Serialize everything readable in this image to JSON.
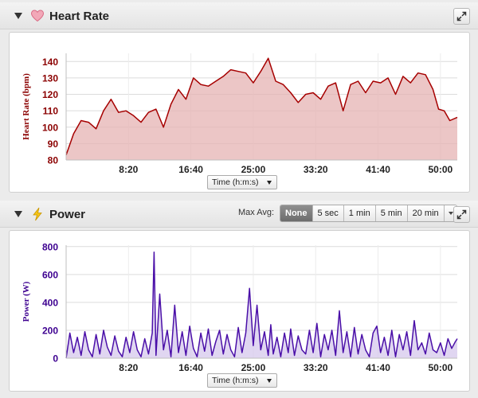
{
  "heart_rate": {
    "title": "Heart Rate",
    "x_selector": "Time (h:m:s)",
    "colors": {
      "line": "#a60000",
      "fill": "#e6b3b3",
      "axis_text": "#8b0000"
    }
  },
  "power": {
    "title": "Power",
    "max_avg": {
      "label": "Max Avg:",
      "options": [
        "None",
        "5 sec",
        "1 min",
        "5 min",
        "20 min"
      ],
      "selected": "None"
    },
    "x_selector": "Time (h:m:s)",
    "colors": {
      "line": "#4a0fa8",
      "fill": "#d5c8ec",
      "axis_text": "#3d0090"
    }
  },
  "chart_data": [
    {
      "type": "area",
      "ylabel": "Heart Rate (bpm)",
      "xlabel": "Time (h:m:s)",
      "ylim": [
        80,
        145
      ],
      "xlim": [
        0,
        3135
      ],
      "yticks": [
        80,
        90,
        100,
        110,
        120,
        130,
        140
      ],
      "xticks": [
        "8:20",
        "16:40",
        "25:00",
        "33:20",
        "41:40",
        "50:00"
      ],
      "grid": true,
      "series": [
        {
          "x": [
            0,
            60,
            120,
            180,
            240,
            300,
            360,
            420,
            480,
            540,
            600,
            660,
            720,
            780,
            840,
            900,
            960,
            1020,
            1080,
            1140,
            1200,
            1260,
            1320,
            1380,
            1440,
            1500,
            1560,
            1620,
            1680,
            1740,
            1800,
            1860,
            1920,
            1980,
            2040,
            2100,
            2160,
            2220,
            2280,
            2340,
            2400,
            2460,
            2520,
            2580,
            2640,
            2700,
            2760,
            2820,
            2880,
            2940,
            2985,
            3030,
            3075,
            3135
          ],
          "values": [
            83,
            96,
            104,
            103,
            99,
            110,
            117,
            109,
            110,
            107,
            103,
            109,
            111,
            100,
            114,
            123,
            117,
            130,
            126,
            125,
            128,
            131,
            135,
            134,
            133,
            127,
            134,
            142,
            128,
            126,
            121,
            115,
            120,
            121,
            117,
            125,
            127,
            110,
            126,
            128,
            121,
            128,
            127,
            130,
            120,
            131,
            127,
            133,
            132,
            123,
            111,
            110,
            104,
            106
          ]
        }
      ]
    },
    {
      "type": "area",
      "ylabel": "Power (W)",
      "xlabel": "Time (h:m:s)",
      "ylim": [
        0,
        810
      ],
      "xlim": [
        0,
        3135
      ],
      "yticks": [
        0,
        200,
        400,
        600,
        800
      ],
      "xticks": [
        "8:20",
        "16:40",
        "25:00",
        "33:20",
        "41:40",
        "50:00"
      ],
      "grid": true,
      "series": [
        {
          "x": [
            0,
            30,
            60,
            90,
            120,
            150,
            180,
            210,
            240,
            270,
            300,
            330,
            360,
            390,
            420,
            450,
            480,
            510,
            540,
            570,
            600,
            630,
            660,
            690,
            705,
            720,
            750,
            780,
            810,
            840,
            870,
            900,
            930,
            960,
            990,
            1020,
            1050,
            1080,
            1110,
            1140,
            1170,
            1200,
            1230,
            1260,
            1290,
            1320,
            1350,
            1380,
            1410,
            1440,
            1470,
            1500,
            1530,
            1560,
            1590,
            1620,
            1640,
            1660,
            1690,
            1720,
            1750,
            1780,
            1800,
            1830,
            1860,
            1890,
            1920,
            1950,
            1980,
            2010,
            2040,
            2070,
            2100,
            2130,
            2160,
            2190,
            2220,
            2250,
            2280,
            2310,
            2340,
            2370,
            2400,
            2430,
            2460,
            2490,
            2520,
            2550,
            2580,
            2610,
            2640,
            2670,
            2700,
            2730,
            2760,
            2790,
            2820,
            2850,
            2880,
            2910,
            2940,
            2970,
            3000,
            3030,
            3060,
            3090,
            3120,
            3135
          ],
          "values": [
            0,
            180,
            40,
            150,
            20,
            190,
            60,
            10,
            170,
            30,
            200,
            80,
            20,
            160,
            50,
            10,
            150,
            40,
            190,
            60,
            10,
            140,
            30,
            180,
            760,
            20,
            460,
            60,
            200,
            10,
            380,
            40,
            190,
            20,
            230,
            70,
            10,
            180,
            50,
            210,
            20,
            120,
            200,
            30,
            170,
            60,
            10,
            220,
            40,
            180,
            500,
            90,
            380,
            60,
            190,
            20,
            240,
            30,
            150,
            10,
            180,
            40,
            210,
            20,
            160,
            60,
            30,
            200,
            40,
            250,
            10,
            170,
            60,
            200,
            20,
            340,
            40,
            190,
            10,
            220,
            30,
            170,
            60,
            10,
            180,
            230,
            40,
            150,
            20,
            200,
            10,
            170,
            60,
            190,
            20,
            270,
            60,
            110,
            30,
            180,
            60,
            40,
            110,
            20,
            140,
            70,
            120,
            140
          ]
        }
      ]
    }
  ]
}
